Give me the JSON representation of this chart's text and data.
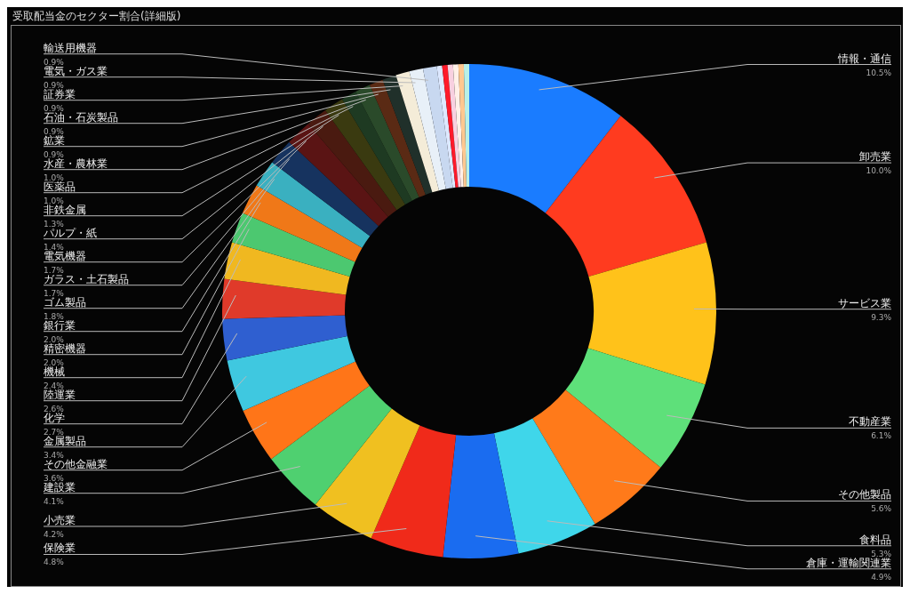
{
  "chart_data": {
    "type": "donut",
    "title": "受取配当金のセクター割合(詳細版)",
    "categories": [
      "情報・通信",
      "卸売業",
      "サービス業",
      "不動産業",
      "その他製品",
      "食料品",
      "倉庫・運輸関連業",
      "保険業",
      "小売業",
      "建設業",
      "その他金融業",
      "金属製品",
      "化学",
      "陸運業",
      "機械",
      "精密機器",
      "銀行業",
      "ゴム製品",
      "ガラス・土石製品",
      "電気機器",
      "パルプ・紙",
      "非鉄金属",
      "医薬品",
      "水産・農林業",
      "鉱業",
      "石油・石炭製品",
      "証券業",
      "電気・ガス業",
      "輸送用機器",
      null,
      null,
      null,
      null,
      null,
      null
    ],
    "values": [
      10.5,
      10.0,
      9.3,
      6.1,
      5.6,
      5.3,
      4.9,
      4.8,
      4.2,
      4.1,
      3.6,
      3.4,
      2.7,
      2.6,
      2.4,
      2.0,
      2.0,
      1.8,
      1.7,
      1.7,
      1.4,
      1.3,
      1.0,
      1.0,
      0.9,
      0.9,
      0.9,
      0.9,
      0.9,
      0.35,
      0.35,
      0.35,
      0.35,
      0.35,
      0.35
    ],
    "value_labels": [
      "10.5%",
      "10.0%",
      "9.3%",
      "6.1%",
      "5.6%",
      "5.3%",
      "4.9%",
      "4.8%",
      "4.2%",
      "4.1%",
      "3.6%",
      "3.4%",
      "2.7%",
      "2.6%",
      "2.4%",
      "2.0%",
      "2.0%",
      "1.8%",
      "1.7%",
      "1.7%",
      "1.4%",
      "1.3%",
      "1.0%",
      "1.0%",
      "0.9%",
      "0.9%",
      "0.9%",
      "0.9%",
      "0.9%",
      null,
      null,
      null,
      null,
      null,
      null
    ],
    "colors": [
      "#1a7cff",
      "#ff3b1f",
      "#ffc21a",
      "#5ee07a",
      "#ff7a1a",
      "#3fd6ea",
      "#1a6cf0",
      "#f02a1a",
      "#f0c020",
      "#4fd070",
      "#ff7518",
      "#3fc8e0",
      "#2f5fd0",
      "#e03a2a",
      "#f0b820",
      "#4cc870",
      "#f07818",
      "#3ab0c0",
      "#16335f",
      "#5a1414",
      "#4a1a10",
      "#3a3a10",
      "#1e3a22",
      "#2a4a2a",
      "#5a2a14",
      "#20302a",
      "#f4ecd8",
      "#e8f0f8",
      "#c8d8f0",
      "#dde8ff",
      "#ff1a2a",
      "#f8d0e0",
      "#fff0e8",
      "#ffc890",
      "#b8f0e8"
    ]
  }
}
